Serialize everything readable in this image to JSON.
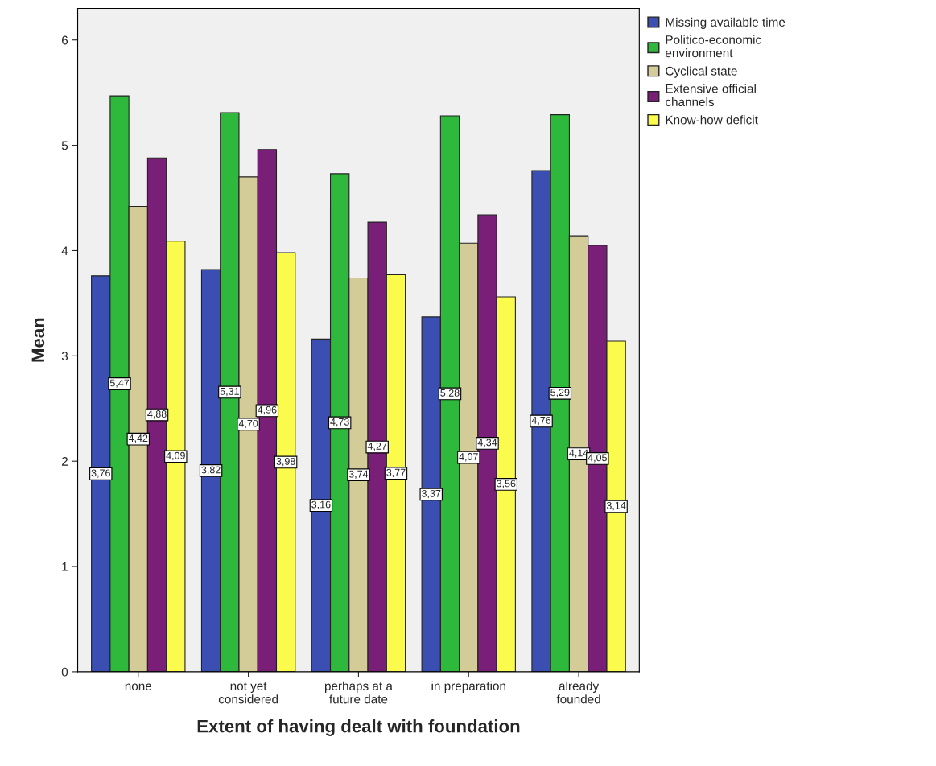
{
  "chart_data": {
    "type": "bar",
    "xlabel": "Extent of having dealt with foundation",
    "ylabel": "Mean",
    "categories": [
      "none",
      "not yet\nconsidered",
      "perhaps at a\nfuture date",
      "in preparation",
      "already\nfounded"
    ],
    "series": [
      {
        "name": "Missing available time",
        "color": "#3b4fb3",
        "values": [
          3.76,
          3.82,
          3.16,
          3.37,
          4.76
        ],
        "value_labels": [
          "3,76",
          "3,82",
          "3,16",
          "3,37",
          "4,76"
        ]
      },
      {
        "name": "Politico-economic\nenvironment",
        "color": "#2eb83c",
        "values": [
          5.47,
          5.31,
          4.73,
          5.28,
          5.29
        ],
        "value_labels": [
          "5,47",
          "5,31",
          "4,73",
          "5,28",
          "5,29"
        ]
      },
      {
        "name": "Cyclical state",
        "color": "#d3cc98",
        "values": [
          4.42,
          4.7,
          3.74,
          4.07,
          4.14
        ],
        "value_labels": [
          "4,42",
          "4,70",
          "3,74",
          "4,07",
          "4,14"
        ]
      },
      {
        "name": "Extensive official\nchannels",
        "color": "#7a1f78",
        "values": [
          4.88,
          4.96,
          4.27,
          4.34,
          4.05
        ],
        "value_labels": [
          "4,88",
          "4,96",
          "4,27",
          "4,34",
          "4,05"
        ]
      },
      {
        "name": "Know-how deficit",
        "color": "#fbfb4e",
        "values": [
          4.09,
          3.98,
          3.77,
          3.56,
          3.14
        ],
        "value_labels": [
          "4,09",
          "3,98",
          "3,77",
          "3,56",
          "3,14"
        ]
      }
    ],
    "ylim": [
      0,
      6.3
    ],
    "yticks": [
      0,
      1,
      2,
      3,
      4,
      5,
      6
    ],
    "grid": false,
    "legend": "top right"
  }
}
